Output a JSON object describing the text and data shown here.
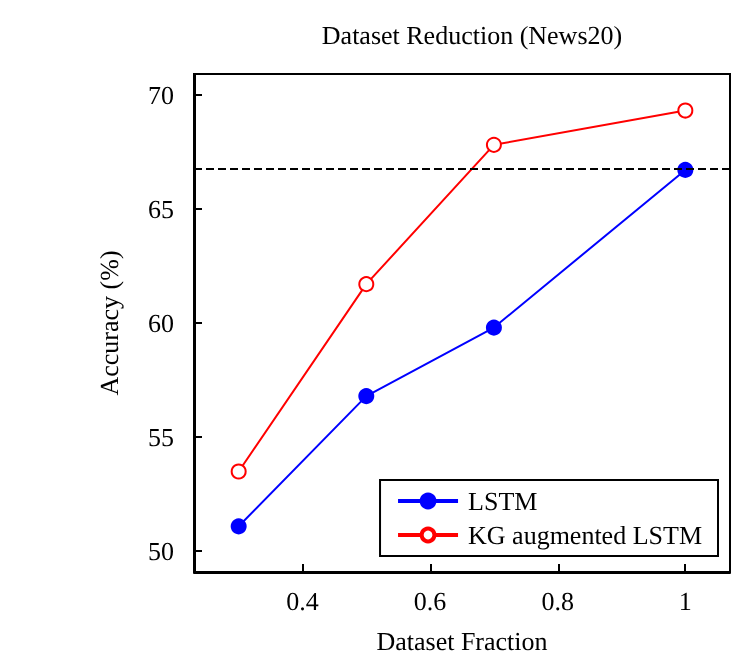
{
  "chart_data": {
    "type": "line",
    "title": "Dataset Reduction (News20)",
    "xlabel": "Dataset Fraction",
    "ylabel": "Accuracy (%)",
    "x": [
      0.3,
      0.5,
      0.7,
      1
    ],
    "series": [
      {
        "name": "LSTM",
        "color": "#0000ff",
        "values": [
          51.1,
          56.8,
          59.8,
          66.7
        ],
        "marker": "circle"
      },
      {
        "name": "KG augmented LSTM",
        "color": "#ff0000",
        "values": [
          53.5,
          61.7,
          67.8,
          69.3
        ],
        "marker": "circle"
      }
    ],
    "xlim": [
      0.23,
      1.07
    ],
    "xticks": [
      0.4,
      0.6,
      0.8,
      1
    ],
    "ylim": [
      49.1,
      70.9
    ],
    "yticks": [
      50,
      55,
      60,
      65,
      70
    ],
    "ref_lines": [
      {
        "axis": "y",
        "value": 66.8,
        "color": "#000000",
        "line_style": "dashed"
      }
    ],
    "grid": false,
    "legend": "bottom right",
    "line_style": "solid"
  }
}
